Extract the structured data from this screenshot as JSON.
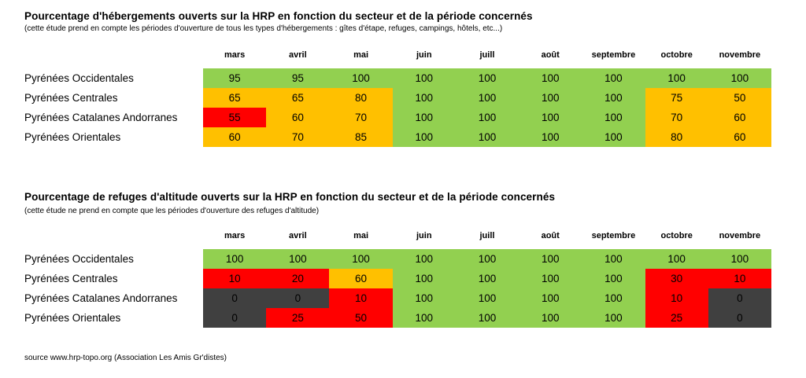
{
  "colors": {
    "green": "#92D050",
    "orange": "#FFC000",
    "red": "#FF0000",
    "dark": "#404040",
    "text": "#000000",
    "background": "#FFFFFF"
  },
  "source": "source www.hrp-topo.org (Association Les Amis Gr'distes)",
  "chart_data": [
    {
      "type": "heatmap",
      "title": "Pourcentage d'hébergements ouverts sur la HRP en fonction du secteur et de la période concernés",
      "subtitle": "(cette étude prend en compte les périodes d'ouverture de tous les types d'hébergements : gîtes d'étape, refuges, campings, hôtels, etc...)",
      "unit": "percent",
      "categories": [
        "mars",
        "avril",
        "mai",
        "juin",
        "juill",
        "août",
        "septembre",
        "octobre",
        "novembre"
      ],
      "series": [
        {
          "name": "Pyrénées Occidentales",
          "values": [
            95,
            95,
            100,
            100,
            100,
            100,
            100,
            100,
            100
          ],
          "cell_colors": [
            "green",
            "green",
            "green",
            "green",
            "green",
            "green",
            "green",
            "green",
            "green"
          ]
        },
        {
          "name": "Pyrénées Centrales",
          "values": [
            65,
            65,
            80,
            100,
            100,
            100,
            100,
            75,
            50
          ],
          "cell_colors": [
            "orange",
            "orange",
            "orange",
            "green",
            "green",
            "green",
            "green",
            "orange",
            "orange"
          ]
        },
        {
          "name": "Pyrénées Catalanes Andorranes",
          "values": [
            55,
            60,
            70,
            100,
            100,
            100,
            100,
            70,
            60
          ],
          "cell_colors": [
            "red",
            "orange",
            "orange",
            "green",
            "green",
            "green",
            "green",
            "orange",
            "orange"
          ]
        },
        {
          "name": "Pyrénées Orientales",
          "values": [
            60,
            70,
            85,
            100,
            100,
            100,
            100,
            80,
            60
          ],
          "cell_colors": [
            "orange",
            "orange",
            "orange",
            "green",
            "green",
            "green",
            "green",
            "orange",
            "orange"
          ]
        }
      ]
    },
    {
      "type": "heatmap",
      "title": "Pourcentage de refuges d'altitude ouverts sur la HRP en fonction du secteur et de la période concernés",
      "subtitle": "(cette étude ne prend en compte que les périodes d'ouverture des refuges d'altitude)",
      "unit": "percent",
      "categories": [
        "mars",
        "avril",
        "mai",
        "juin",
        "juill",
        "août",
        "septembre",
        "octobre",
        "novembre"
      ],
      "series": [
        {
          "name": "Pyrénées Occidentales",
          "values": [
            100,
            100,
            100,
            100,
            100,
            100,
            100,
            100,
            100
          ],
          "cell_colors": [
            "green",
            "green",
            "green",
            "green",
            "green",
            "green",
            "green",
            "green",
            "green"
          ]
        },
        {
          "name": "Pyrénées Centrales",
          "values": [
            10,
            20,
            60,
            100,
            100,
            100,
            100,
            30,
            10
          ],
          "cell_colors": [
            "red",
            "red",
            "orange",
            "green",
            "green",
            "green",
            "green",
            "red",
            "red"
          ]
        },
        {
          "name": "Pyrénées Catalanes Andorranes",
          "values": [
            0,
            0,
            10,
            100,
            100,
            100,
            100,
            10,
            0
          ],
          "cell_colors": [
            "dark",
            "dark",
            "red",
            "green",
            "green",
            "green",
            "green",
            "red",
            "dark"
          ]
        },
        {
          "name": "Pyrénées Orientales",
          "values": [
            0,
            25,
            50,
            100,
            100,
            100,
            100,
            25,
            0
          ],
          "cell_colors": [
            "dark",
            "red",
            "red",
            "green",
            "green",
            "green",
            "green",
            "red",
            "dark"
          ]
        }
      ]
    }
  ]
}
